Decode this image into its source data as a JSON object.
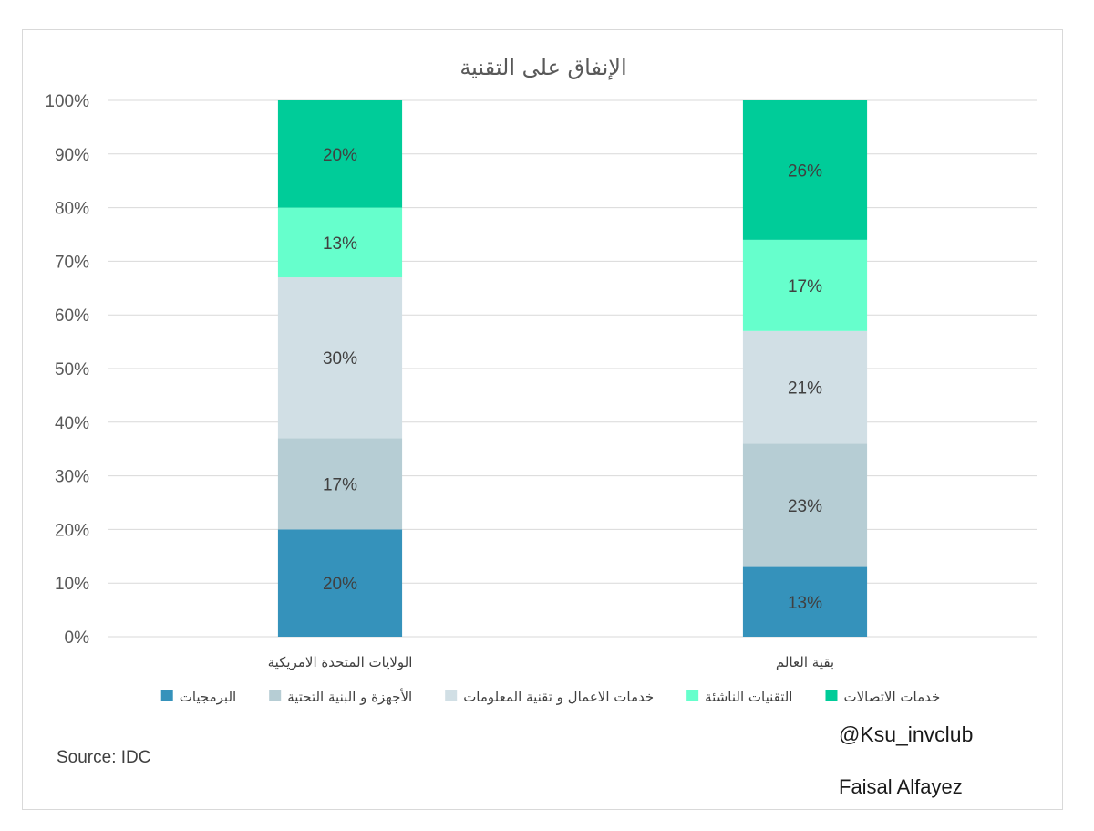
{
  "chart_data": {
    "type": "bar",
    "stacked": true,
    "percent": true,
    "title": "الإنفاق على التقنية",
    "categories": [
      "الولايات المتحدة الامريكية",
      "بقية العالم"
    ],
    "series": [
      {
        "name": "البرمجيات",
        "values": [
          20,
          13
        ],
        "color": "#3592bb"
      },
      {
        "name": "الأجهزة و البنية التحتية",
        "values": [
          17,
          23
        ],
        "color": "#b6cdd4"
      },
      {
        "name": "خدمات الاعمال و تقنية المعلومات",
        "values": [
          30,
          21
        ],
        "color": "#d1dfe5"
      },
      {
        "name": "التقنيات الناشئة",
        "values": [
          13,
          17
        ],
        "color": "#66ffcc"
      },
      {
        "name": "خدمات الاتصالات",
        "values": [
          20,
          26
        ],
        "color": "#00cc99"
      }
    ],
    "ylim": [
      0,
      100
    ],
    "yticks": [
      "0%",
      "10%",
      "20%",
      "30%",
      "40%",
      "50%",
      "60%",
      "70%",
      "80%",
      "90%",
      "100%"
    ],
    "grid": true,
    "legend_position": "bottom"
  },
  "annotations": {
    "source": "Source: IDC",
    "handle": "@Ksu_invclub",
    "author": "Faisal Alfayez"
  }
}
